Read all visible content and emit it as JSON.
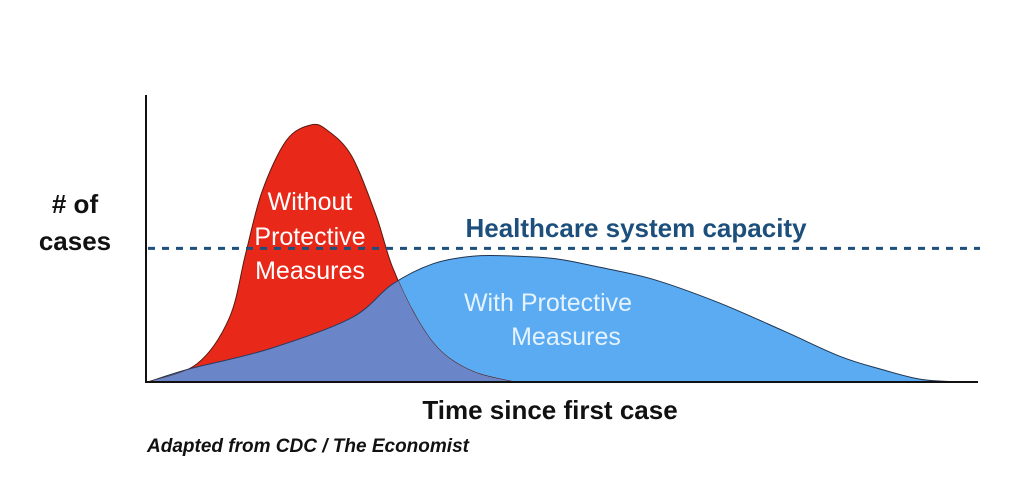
{
  "chart_data": {
    "type": "area",
    "ylabel_lines": [
      "# of",
      "cases"
    ],
    "xlabel": "Time since first case",
    "x_range": [
      0,
      100
    ],
    "y_range": [
      0,
      100
    ],
    "series": [
      {
        "label_lines": [
          "Without",
          "Protective",
          "Measures"
        ],
        "color": "#e8291a",
        "x": [
          0,
          6,
          10,
          12,
          14,
          17,
          20,
          22,
          25,
          28,
          30,
          33,
          36,
          40,
          45
        ],
        "y": [
          0,
          7,
          25,
          50,
          74,
          94,
          100,
          98,
          88,
          65,
          45,
          25,
          12,
          4,
          0
        ]
      },
      {
        "label_lines": [
          "With Protective",
          "Measures"
        ],
        "color": "#5aabf2",
        "x": [
          0,
          5,
          15,
          25,
          30,
          35,
          40,
          45,
          50,
          55,
          62,
          70,
          78,
          85,
          90,
          95,
          100
        ],
        "y": [
          0,
          5,
          13,
          25,
          38,
          46,
          49,
          49,
          48,
          45,
          40,
          31,
          20,
          10,
          5,
          1,
          0
        ]
      }
    ],
    "overlap_color": "#6a86c8",
    "capacity": {
      "label": "Healthcare system capacity",
      "y": 52,
      "color": "#1d4f7c"
    }
  },
  "source": "Adapted from CDC / The Economist"
}
